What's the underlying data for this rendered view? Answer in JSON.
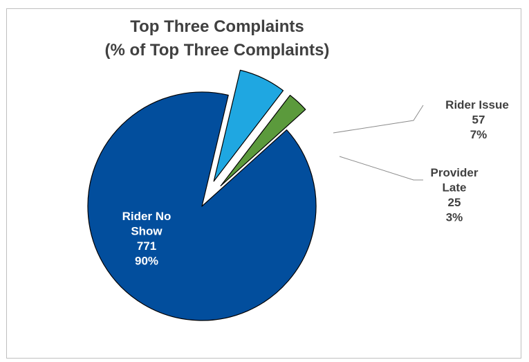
{
  "chart_data": {
    "type": "pie",
    "title": "Top Three Complaints",
    "subtitle": "(% of Top Three Complaints)",
    "exploded": true,
    "slices": [
      {
        "name_lines": [
          "Rider No",
          "Show"
        ],
        "value": 771,
        "percent": "90%",
        "color": "#024e9d",
        "label_color": "#ffffff"
      },
      {
        "name_lines": [
          "Rider Issue"
        ],
        "value": 57,
        "percent": "7%",
        "color": "#1fa7e1",
        "label_color": "#404040"
      },
      {
        "name_lines": [
          "Provider",
          "Late"
        ],
        "value": 25,
        "percent": "3%",
        "color": "#5b9a3c",
        "label_color": "#404040"
      }
    ]
  }
}
